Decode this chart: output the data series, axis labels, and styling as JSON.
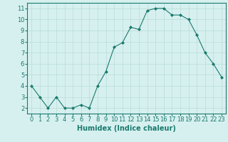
{
  "x": [
    0,
    1,
    2,
    3,
    4,
    5,
    6,
    7,
    8,
    9,
    10,
    11,
    12,
    13,
    14,
    15,
    16,
    17,
    18,
    19,
    20,
    21,
    22,
    23
  ],
  "y": [
    4.0,
    3.0,
    2.0,
    3.0,
    2.0,
    2.0,
    2.3,
    2.0,
    4.0,
    5.3,
    7.5,
    7.9,
    9.3,
    9.1,
    10.8,
    11.0,
    11.0,
    10.4,
    10.4,
    10.0,
    8.6,
    7.0,
    6.0,
    4.8
  ],
  "xlabel": "Humidex (Indice chaleur)",
  "xlim": [
    -0.5,
    23.5
  ],
  "ylim": [
    1.5,
    11.5
  ],
  "yticks": [
    2,
    3,
    4,
    5,
    6,
    7,
    8,
    9,
    10,
    11
  ],
  "xticks": [
    0,
    1,
    2,
    3,
    4,
    5,
    6,
    7,
    8,
    9,
    10,
    11,
    12,
    13,
    14,
    15,
    16,
    17,
    18,
    19,
    20,
    21,
    22,
    23
  ],
  "line_color": "#1a7a6e",
  "marker": "D",
  "marker_size": 2.0,
  "bg_color": "#d6f0ef",
  "grid_color": "#b8dbd9",
  "tick_color": "#1a7a6e",
  "label_color": "#1a7a6e",
  "font_size_label": 7,
  "font_size_tick": 6
}
